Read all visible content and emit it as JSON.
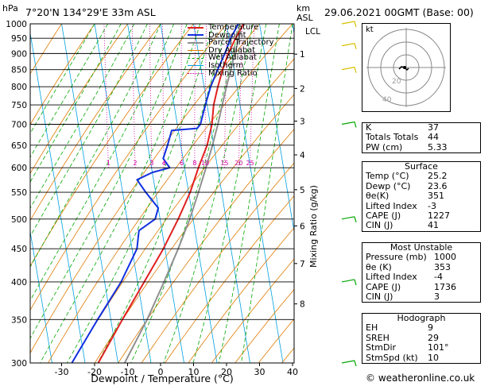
{
  "header": {
    "location": "7°20'N  134°29'E  33m  ASL",
    "datetime": "29.06.2021  00GMT  (Base: 00)",
    "pressure_unit": "hPa",
    "height_unit_line1": "km",
    "height_unit_line2": "ASL"
  },
  "legend": [
    {
      "label": "Temperature",
      "color": "#e02020",
      "style": "thick"
    },
    {
      "label": "Dewpoint",
      "color": "#1030e0",
      "style": "thick"
    },
    {
      "label": "Parcel Trajectory",
      "color": "#909090",
      "style": "thick"
    },
    {
      "label": "Dry Adiabat",
      "color": "#e07a00",
      "style": "thin"
    },
    {
      "label": "Wet Adiabat",
      "color": "#00a800",
      "style": "dash"
    },
    {
      "label": "Isotherm",
      "color": "#00a0e0",
      "style": "thin"
    },
    {
      "label": "Mixing Ratio",
      "color": "#d000a0",
      "style": "dot"
    }
  ],
  "chart_data": {
    "type": "line",
    "title": "",
    "xlabel": "Dewpoint / Temperature (°C)",
    "ylabel": "Mixing Ratio (g/kg)",
    "x_ticks": [
      -30,
      -20,
      -10,
      0,
      10,
      20,
      30,
      40
    ],
    "pressure_levels": [
      300,
      350,
      400,
      450,
      500,
      550,
      600,
      650,
      700,
      750,
      800,
      850,
      900,
      950,
      1000
    ],
    "height_km_labels": [
      {
        "km": "1",
        "p": 898
      },
      {
        "km": "2",
        "p": 795
      },
      {
        "km": "3",
        "p": 708
      },
      {
        "km": "4",
        "p": 628
      },
      {
        "km": "5",
        "p": 555
      },
      {
        "km": "6",
        "p": 488
      },
      {
        "km": "7",
        "p": 427
      },
      {
        "km": "8",
        "p": 370
      }
    ],
    "lcl_label": "LCL",
    "lcl_pressure": 975,
    "mixing_ratio_labels": [
      "1",
      "2",
      "3",
      "4",
      "6",
      "8",
      "10",
      "15",
      "20",
      "25"
    ],
    "series": [
      {
        "name": "Temperature",
        "points": [
          [
            1000,
            25.2
          ],
          [
            950,
            22.0
          ],
          [
            900,
            19.0
          ],
          [
            850,
            16.5
          ],
          [
            800,
            14.2
          ],
          [
            750,
            12.0
          ],
          [
            700,
            10.5
          ],
          [
            650,
            8.0
          ],
          [
            600,
            4.2
          ],
          [
            550,
            0.5
          ],
          [
            500,
            -4.5
          ],
          [
            450,
            -10.5
          ],
          [
            400,
            -18.0
          ],
          [
            350,
            -26.5
          ],
          [
            300,
            -36.0
          ]
        ]
      },
      {
        "name": "Dewpoint",
        "points": [
          [
            1000,
            23.6
          ],
          [
            950,
            20.5
          ],
          [
            900,
            18.0
          ],
          [
            850,
            15.0
          ],
          [
            800,
            12.0
          ],
          [
            750,
            9.5
          ],
          [
            700,
            7.0
          ],
          [
            690,
            5.8
          ],
          [
            685,
            -2.0
          ],
          [
            650,
            -4.0
          ],
          [
            620,
            -6.0
          ],
          [
            600,
            -4.5
          ],
          [
            590,
            -10.0
          ],
          [
            575,
            -15.0
          ],
          [
            550,
            -13.0
          ],
          [
            520,
            -10.0
          ],
          [
            500,
            -11.5
          ],
          [
            480,
            -17.0
          ],
          [
            450,
            -18.5
          ],
          [
            400,
            -25.0
          ],
          [
            350,
            -34.0
          ],
          [
            300,
            -44.0
          ]
        ]
      },
      {
        "name": "Parcel Trajectory",
        "points": [
          [
            975,
            24.0
          ],
          [
            900,
            21.0
          ],
          [
            850,
            19.0
          ],
          [
            800,
            16.8
          ],
          [
            750,
            14.6
          ],
          [
            700,
            12.3
          ],
          [
            650,
            9.6
          ],
          [
            600,
            6.5
          ],
          [
            550,
            3.0
          ],
          [
            500,
            -1.0
          ],
          [
            450,
            -6.0
          ],
          [
            400,
            -12.0
          ],
          [
            350,
            -19.0
          ],
          [
            300,
            -28.0
          ]
        ]
      }
    ],
    "wind_barbs_pressures": [
      300,
      400,
      500,
      700,
      850,
      925,
      1000
    ]
  },
  "hodograph": {
    "label": "kt",
    "ring_labels": [
      "20",
      "40"
    ]
  },
  "indices": {
    "k_label": "K",
    "k_value": "37",
    "tt_label": "Totals Totals",
    "tt_value": "44",
    "pw_label": "PW (cm)",
    "pw_value": "5.33",
    "surface_title": "Surface",
    "s_temp_label": "Temp (°C)",
    "s_temp_value": "25.2",
    "s_dewp_label": "Dewp (°C)",
    "s_dewp_value": "23.6",
    "s_theta_label": "θe(K)",
    "s_theta_value": "351",
    "s_li_label": "Lifted Index",
    "s_li_value": "-3",
    "s_cape_label": "CAPE (J)",
    "s_cape_value": "1227",
    "s_cin_label": "CIN (J)",
    "s_cin_value": "41",
    "mu_title": "Most Unstable",
    "mu_p_label": "Pressure (mb)",
    "mu_p_value": "1000",
    "mu_theta_label": "θe (K)",
    "mu_theta_value": "353",
    "mu_li_label": "Lifted Index",
    "mu_li_value": "-4",
    "mu_cape_label": "CAPE (J)",
    "mu_cape_value": "1736",
    "mu_cin_label": "CIN (J)",
    "mu_cin_value": "3",
    "hodo_title": "Hodograph",
    "eh_label": "EH",
    "eh_value": "9",
    "srh_label": "SREH",
    "srh_value": "29",
    "stmdir_label": "StmDir",
    "stmdir_value": "101°",
    "stmspd_label": "StmSpd (kt)",
    "stmspd_value": "10"
  },
  "credit": "© weatheronline.co.uk"
}
